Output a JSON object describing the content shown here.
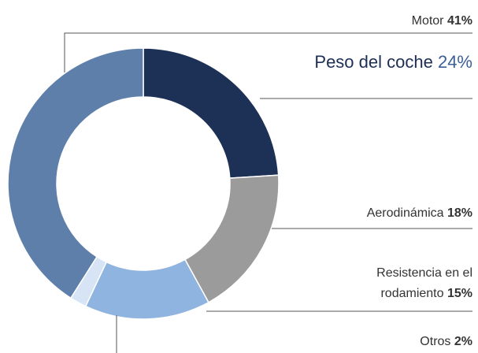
{
  "chart_data": {
    "type": "donut",
    "categories": [
      "Peso del coche",
      "Aerodinámica",
      "Resistencia en el rodamiento",
      "Otros",
      "Motor"
    ],
    "values": [
      24,
      18,
      15,
      2,
      41
    ],
    "value_labels": [
      "24%",
      "18%",
      "15%",
      "2%",
      "41%"
    ],
    "colors": [
      "#1d3157",
      "#9b9b9b",
      "#8fb4e0",
      "#d6e4f5",
      "#5f7fab"
    ]
  }
}
